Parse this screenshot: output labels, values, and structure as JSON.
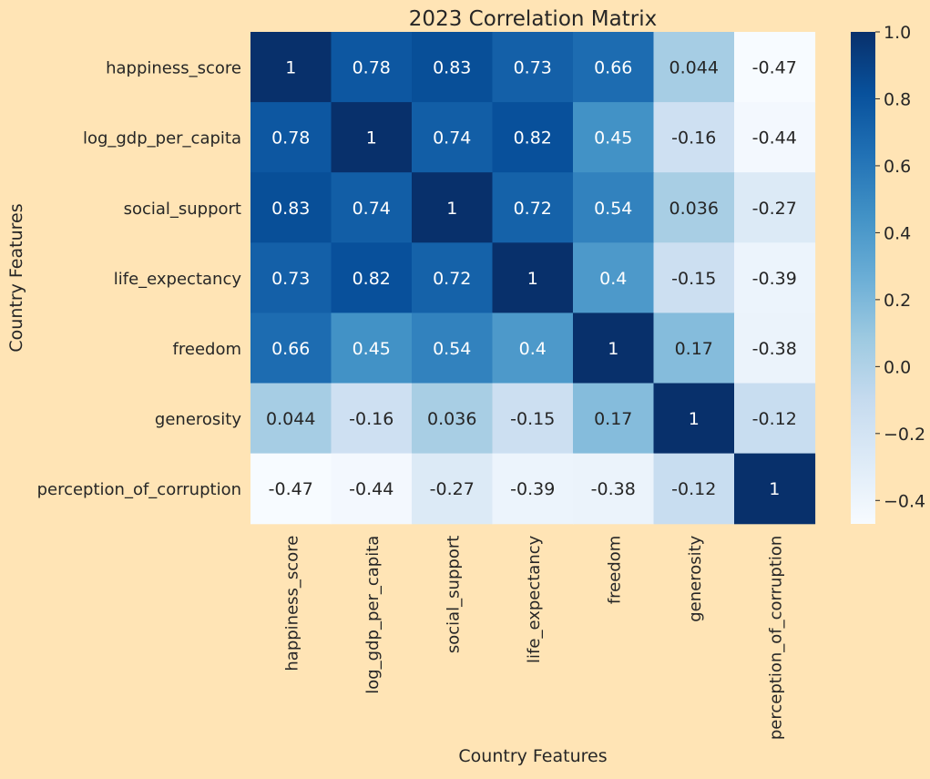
{
  "chart_data": {
    "type": "heatmap",
    "title": "2023 Correlation Matrix",
    "xlabel": "Country Features",
    "ylabel": "Country Features",
    "categories": [
      "happiness_score",
      "log_gdp_per_capita",
      "social_support",
      "life_expectancy",
      "freedom",
      "generosity",
      "perception_of_corruption"
    ],
    "values": [
      [
        1,
        0.78,
        0.83,
        0.73,
        0.66,
        0.044,
        -0.47
      ],
      [
        0.78,
        1,
        0.74,
        0.82,
        0.45,
        -0.16,
        -0.44
      ],
      [
        0.83,
        0.74,
        1,
        0.72,
        0.54,
        0.036,
        -0.27
      ],
      [
        0.73,
        0.82,
        0.72,
        1,
        0.4,
        -0.15,
        -0.39
      ],
      [
        0.66,
        0.45,
        0.54,
        0.4,
        1,
        0.17,
        -0.38
      ],
      [
        0.044,
        -0.16,
        0.036,
        -0.15,
        0.17,
        1,
        -0.12
      ],
      [
        -0.47,
        -0.44,
        -0.27,
        -0.39,
        -0.38,
        -0.12,
        1
      ]
    ],
    "annotations": [
      [
        "1",
        "0.78",
        "0.83",
        "0.73",
        "0.66",
        "0.044",
        "-0.47"
      ],
      [
        "0.78",
        "1",
        "0.74",
        "0.82",
        "0.45",
        "-0.16",
        "-0.44"
      ],
      [
        "0.83",
        "0.74",
        "1",
        "0.72",
        "0.54",
        "0.036",
        "-0.27"
      ],
      [
        "0.73",
        "0.82",
        "0.72",
        "1",
        "0.4",
        "-0.15",
        "-0.39"
      ],
      [
        "0.66",
        "0.45",
        "0.54",
        "0.4",
        "1",
        "0.17",
        "-0.38"
      ],
      [
        "0.044",
        "-0.16",
        "0.036",
        "-0.15",
        "0.17",
        "1",
        "-0.12"
      ],
      [
        "-0.47",
        "-0.44",
        "-0.27",
        "-0.39",
        "-0.38",
        "-0.12",
        "1"
      ]
    ],
    "colormap": "Blues",
    "vmin": -0.47,
    "vmax": 1.0,
    "colorbar_ticks": [
      1.0,
      0.8,
      0.6,
      0.4,
      0.2,
      0.0,
      -0.2,
      -0.4
    ],
    "colorbar_tick_labels": [
      "1.0",
      "0.8",
      "0.6",
      "0.4",
      "0.2",
      "0.0",
      "−0.2",
      "−0.4"
    ]
  },
  "colors": {
    "background": "#FFE4B5",
    "text": "#262626",
    "light_annotation": "#FFFFFF",
    "dark_annotation": "#262626"
  }
}
